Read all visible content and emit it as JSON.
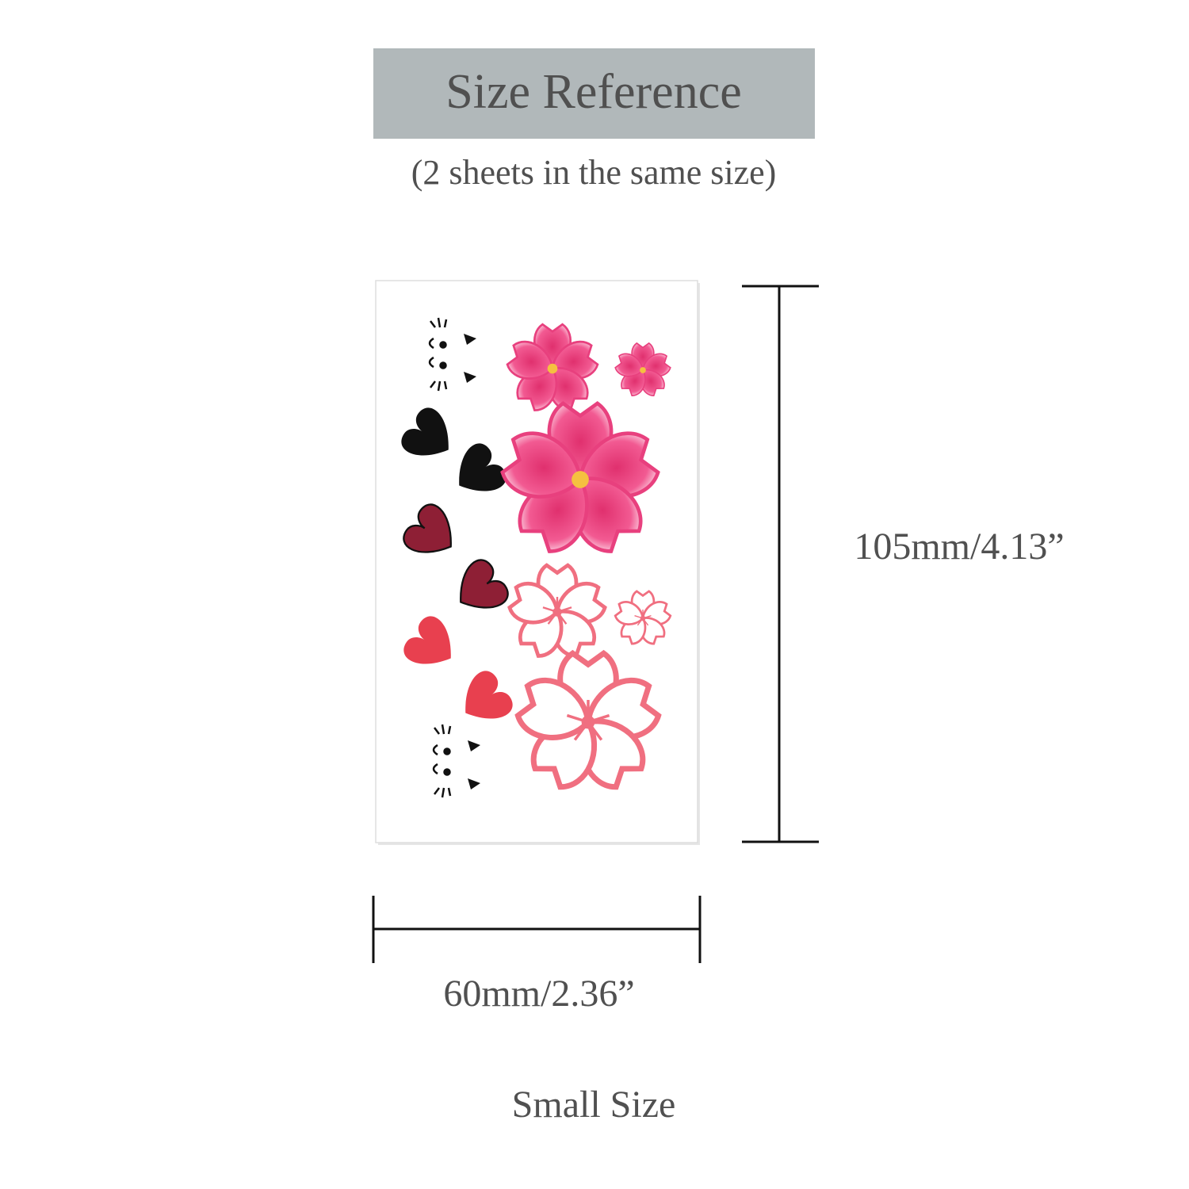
{
  "header": {
    "title": "Size Reference",
    "subtitle": "(2 sheets in the same size)"
  },
  "dimensions": {
    "height": "105mm/4.13”",
    "width": "60mm/2.36”"
  },
  "footer": "Small Size"
}
